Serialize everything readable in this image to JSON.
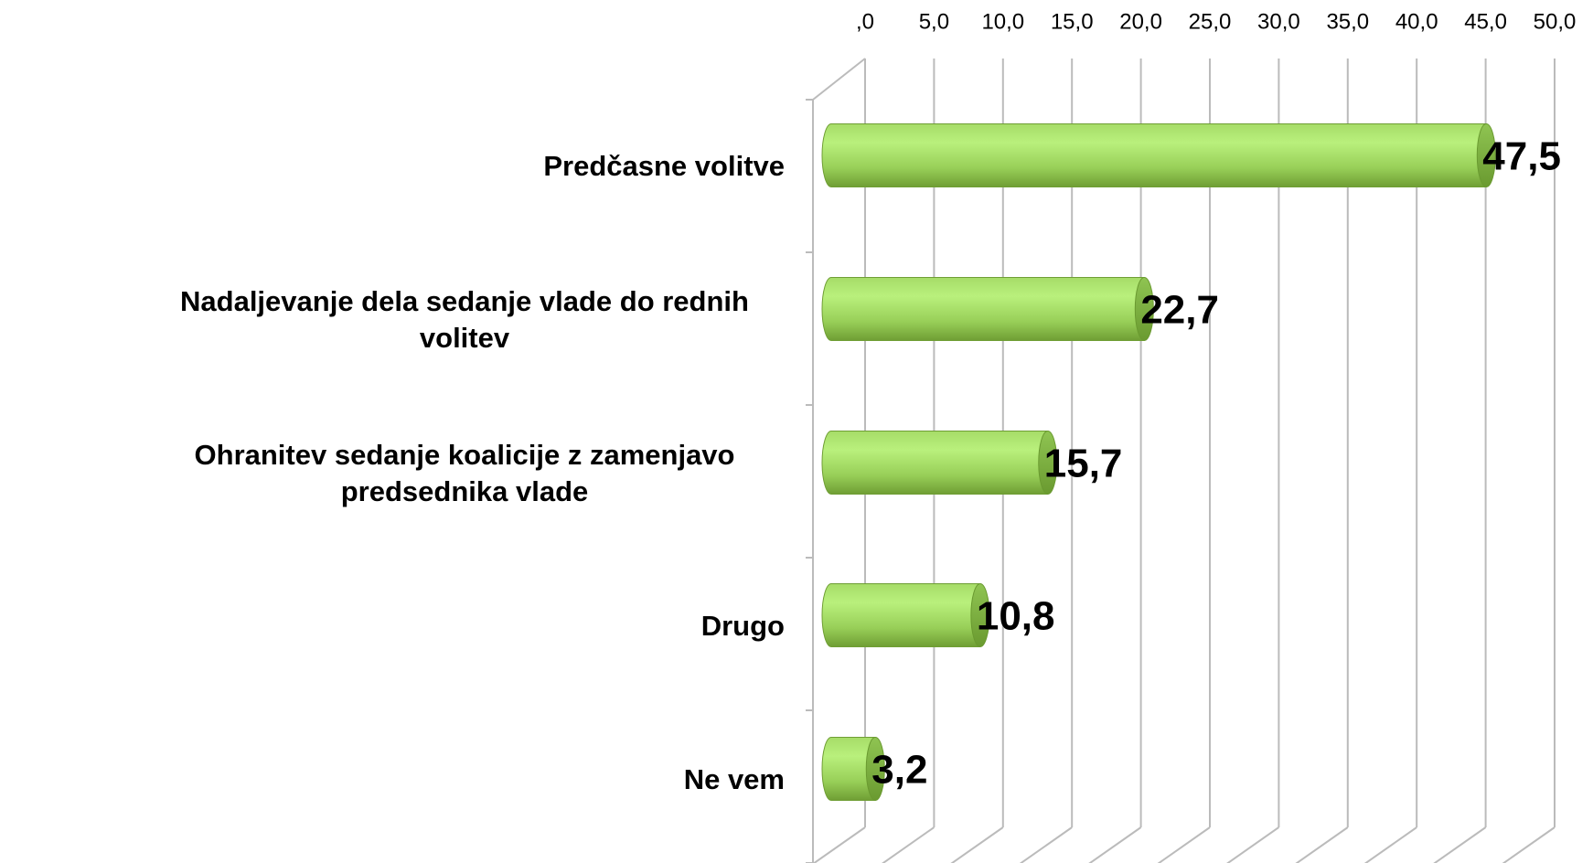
{
  "chart_data": {
    "type": "bar",
    "orientation": "horizontal",
    "categories": [
      "Predčasne volitve",
      "Nadaljevanje dela sedanje vlade do rednih volitev",
      "Ohranitev sedanje koalicije z zamenjavo predsednika vlade",
      "Drugo",
      "Ne vem"
    ],
    "values": [
      47.5,
      22.7,
      15.7,
      10.8,
      3.2
    ],
    "value_labels": [
      "47,5",
      "22,7",
      "15,7",
      "10,8",
      "3,2"
    ],
    "color": "#9ed65c",
    "xlim": [
      0,
      50
    ],
    "xticks": [
      {
        "value": 0,
        "label": ",0"
      },
      {
        "value": 5,
        "label": "5,0"
      },
      {
        "value": 10,
        "label": "10,0"
      },
      {
        "value": 15,
        "label": "15,0"
      },
      {
        "value": 20,
        "label": "20,0"
      },
      {
        "value": 25,
        "label": "25,0"
      },
      {
        "value": 30,
        "label": "30,0"
      },
      {
        "value": 35,
        "label": "35,0"
      },
      {
        "value": 40,
        "label": "40,0"
      },
      {
        "value": 45,
        "label": "45,0"
      },
      {
        "value": 50,
        "label": "50,0"
      }
    ],
    "grid": true
  }
}
